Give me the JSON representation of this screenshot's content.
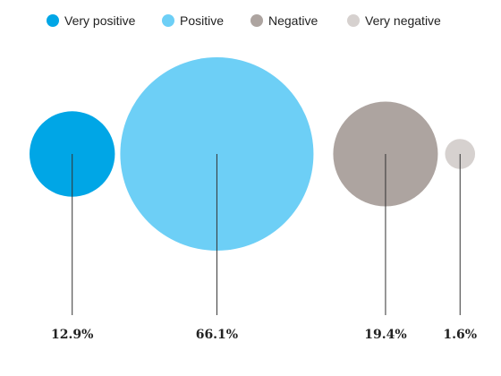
{
  "chart_data": {
    "type": "bubble",
    "categories": [
      "Very positive",
      "Positive",
      "Negative",
      "Very negative"
    ],
    "values": [
      12.9,
      66.1,
      19.4,
      1.6
    ],
    "value_labels": [
      "12.9%",
      "66.1%",
      "19.4%",
      "1.6%"
    ],
    "colors": [
      "#00a6e6",
      "#6dcff6",
      "#ada4a0",
      "#d6d1cf"
    ],
    "legend": "top"
  }
}
